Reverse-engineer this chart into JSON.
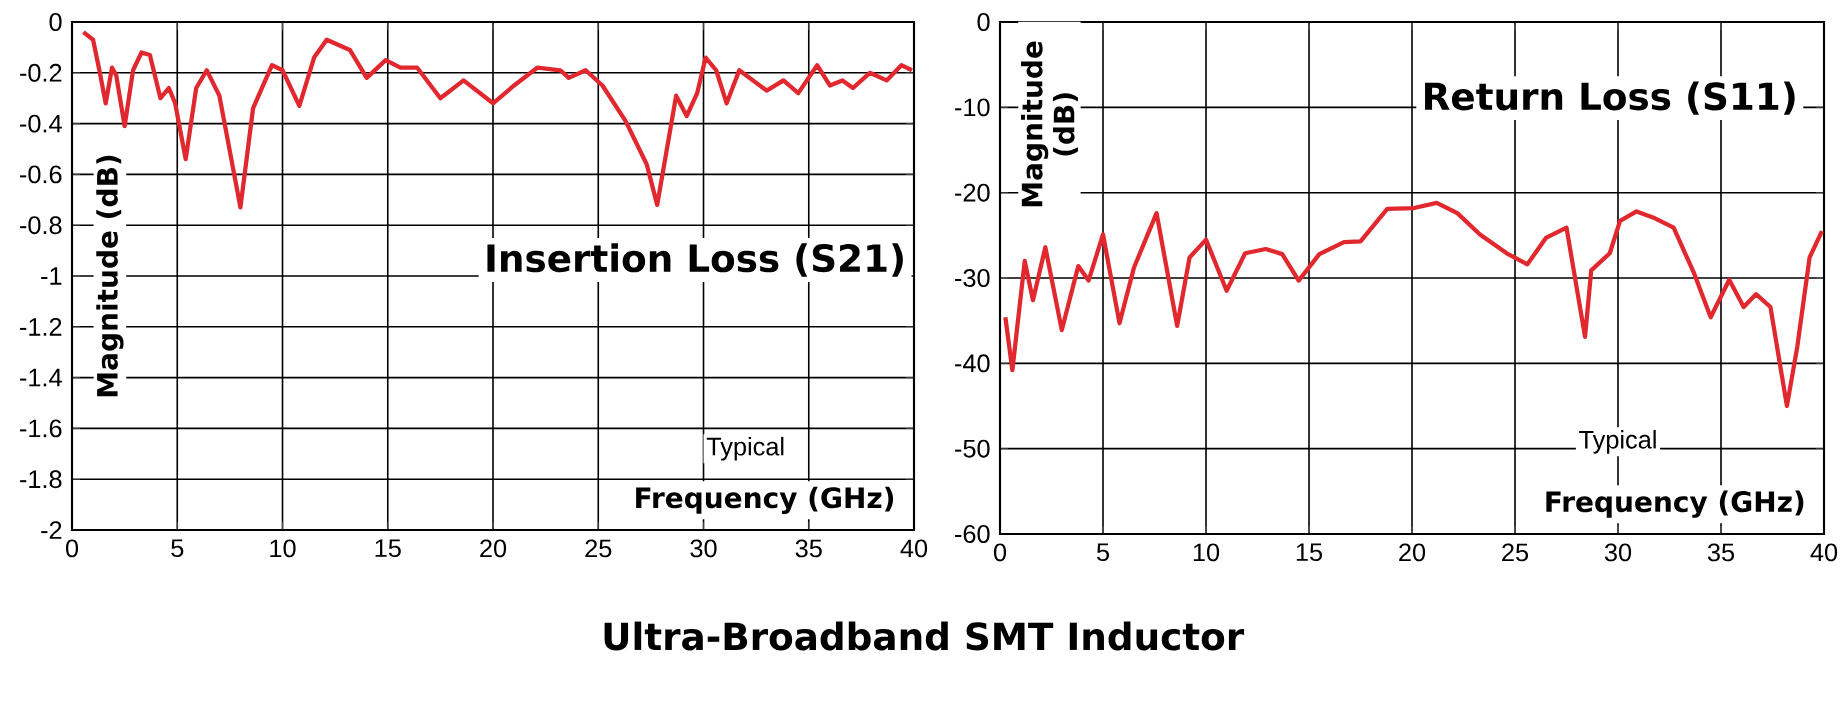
{
  "chart_data": [
    {
      "type": "line",
      "title": "Insertion Loss (S21)",
      "xlabel": "Frequency (GHz)",
      "ylabel": "Magnitude (dB)",
      "annotations": [
        "Typical",
        "Ultra-Broadband SMT Inductor"
      ],
      "xlim": [
        0,
        40
      ],
      "ylim": [
        -2,
        0
      ],
      "xticks": [
        0,
        5,
        10,
        15,
        20,
        25,
        30,
        35,
        40
      ],
      "yticks": [
        0,
        -0.2,
        -0.4,
        -0.6,
        -0.8,
        -1,
        -1.2,
        -1.4,
        -1.6,
        -1.8,
        -2
      ],
      "grid": true,
      "marker": "none",
      "line_style": "solid",
      "series": [
        {
          "color": "#e0282e",
          "x": [
            0.54,
            1.0,
            1.3,
            1.6,
            1.9,
            2.1,
            2.5,
            2.9,
            3.3,
            3.7,
            4.2,
            4.6,
            4.9,
            5.4,
            5.9,
            6.4,
            7.0,
            8.0,
            8.6,
            9.5,
            10.0,
            10.8,
            11.5,
            12.1,
            13.2,
            14.0,
            14.9,
            15.6,
            16.4,
            17.5,
            18.6,
            20.0,
            21.0,
            22.1,
            23.2,
            23.6,
            24.4,
            25.2,
            26.3,
            27.3,
            27.8,
            28.7,
            29.2,
            29.7,
            30.1,
            30.6,
            31.1,
            31.7,
            33.0,
            33.8,
            34.5,
            35.4,
            36.0,
            36.6,
            37.1,
            37.9,
            38.7,
            39.4,
            39.9
          ],
          "values": [
            -0.04,
            -0.07,
            -0.19,
            -0.32,
            -0.18,
            -0.21,
            -0.41,
            -0.19,
            -0.12,
            -0.13,
            -0.3,
            -0.26,
            -0.32,
            -0.54,
            -0.26,
            -0.19,
            -0.29,
            -0.73,
            -0.34,
            -0.17,
            -0.19,
            -0.33,
            -0.14,
            -0.07,
            -0.11,
            -0.22,
            -0.15,
            -0.18,
            -0.18,
            -0.3,
            -0.23,
            -0.32,
            -0.25,
            -0.18,
            -0.19,
            -0.22,
            -0.19,
            -0.25,
            -0.39,
            -0.56,
            -0.72,
            -0.29,
            -0.37,
            -0.28,
            -0.14,
            -0.19,
            -0.32,
            -0.19,
            -0.27,
            -0.23,
            -0.28,
            -0.17,
            -0.25,
            -0.23,
            -0.26,
            -0.2,
            -0.23,
            -0.17,
            -0.19
          ]
        }
      ]
    },
    {
      "type": "line",
      "title": "Return Loss (S11)",
      "xlabel": "Frequency (GHz)",
      "ylabel": "Magnitude (dB)",
      "annotations": [
        "Typical"
      ],
      "xlim": [
        0,
        40
      ],
      "ylim": [
        -60,
        0
      ],
      "xticks": [
        0,
        5,
        10,
        15,
        20,
        25,
        30,
        35,
        40
      ],
      "yticks": [
        0,
        -10,
        -20,
        -30,
        -40,
        -50,
        -60
      ],
      "grid": true,
      "marker": "none",
      "line_style": "solid",
      "series": [
        {
          "color": "#e0282e",
          "x": [
            0.26,
            0.6,
            1.2,
            1.6,
            2.2,
            3.0,
            3.8,
            4.3,
            5.0,
            5.8,
            6.5,
            7.6,
            8.6,
            9.2,
            10.0,
            11.0,
            11.9,
            12.9,
            13.7,
            14.5,
            15.5,
            16.7,
            17.5,
            18.8,
            20.1,
            21.2,
            22.2,
            23.3,
            24.6,
            25.6,
            26.5,
            27.5,
            28.4,
            28.7,
            29.6,
            30.1,
            30.9,
            31.7,
            32.7,
            33.7,
            34.5,
            35.4,
            36.1,
            36.7,
            37.4,
            38.2,
            38.7,
            39.3,
            39.9
          ],
          "values": [
            -34.6,
            -40.8,
            -28.0,
            -32.6,
            -26.4,
            -36.1,
            -28.6,
            -30.3,
            -24.9,
            -35.3,
            -28.8,
            -22.4,
            -35.6,
            -27.6,
            -25.5,
            -31.5,
            -27.1,
            -26.6,
            -27.2,
            -30.3,
            -27.2,
            -25.8,
            -25.7,
            -21.9,
            -21.8,
            -21.2,
            -22.4,
            -24.9,
            -27.1,
            -28.4,
            -25.3,
            -24.1,
            -36.9,
            -29.1,
            -27.1,
            -23.3,
            -22.2,
            -22.9,
            -24.1,
            -29.5,
            -34.6,
            -30.2,
            -33.4,
            -31.9,
            -33.4,
            -45.0,
            -38.1,
            -27.6,
            -24.5
          ]
        }
      ]
    }
  ]
}
